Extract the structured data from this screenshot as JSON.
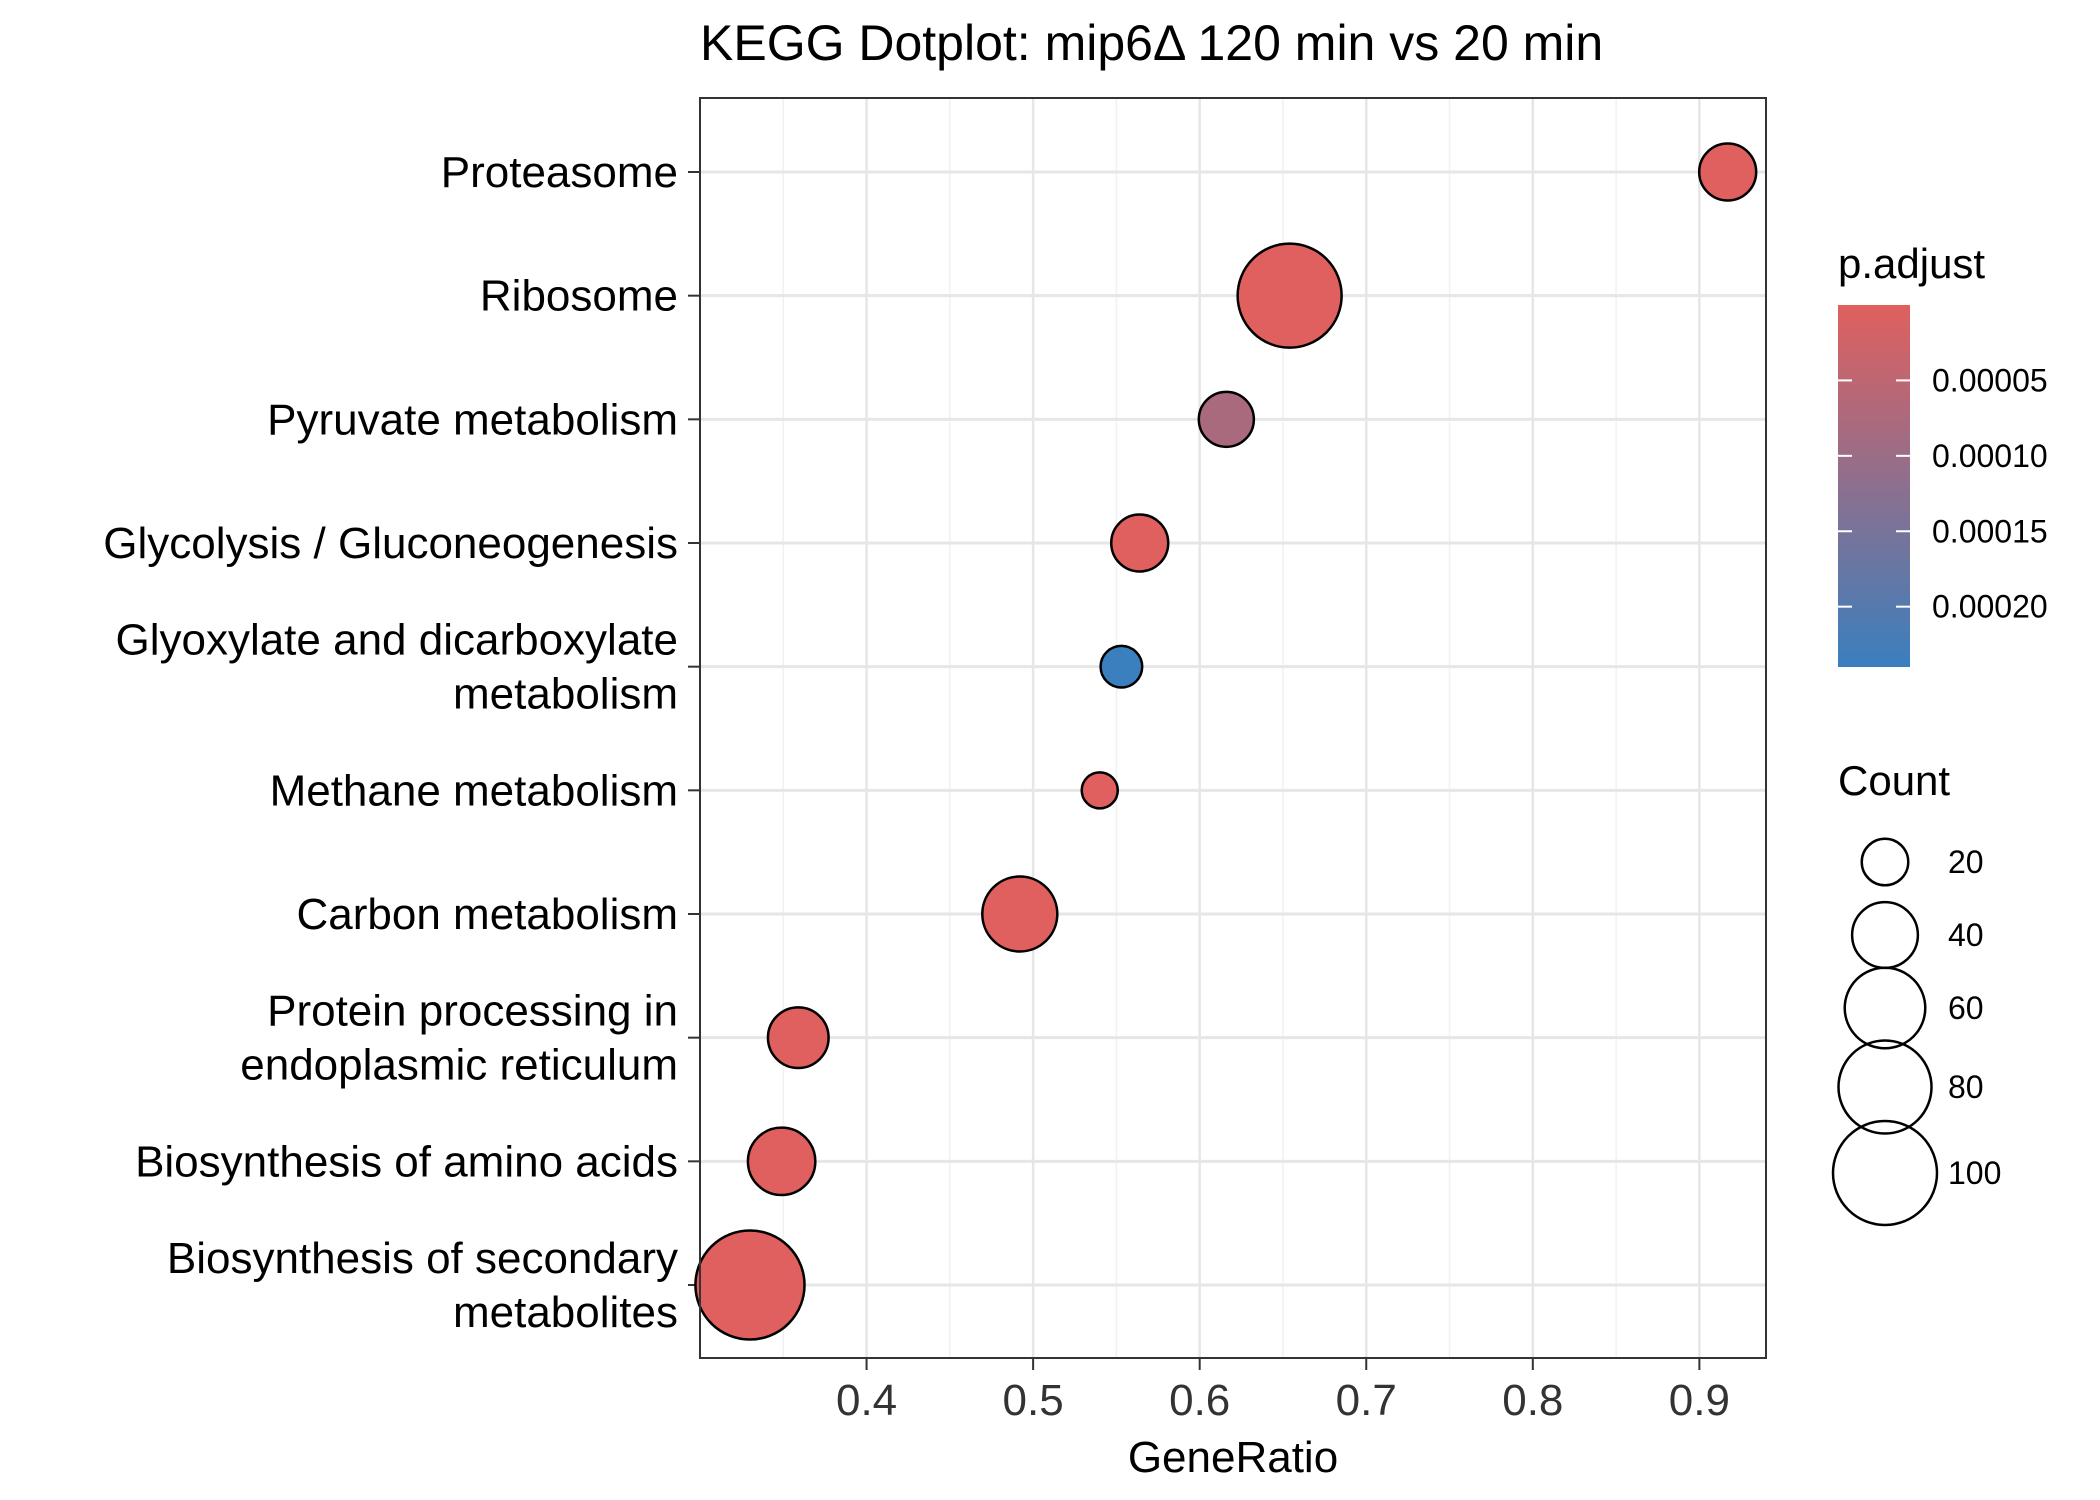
{
  "chart_data": {
    "type": "scatter",
    "title": "KEGG Dotplot: mip6Δ 120 min vs 20 min",
    "xlabel": "GeneRatio",
    "ylabel": "",
    "xlim": [
      0.3,
      0.94
    ],
    "x_ticks": [
      "0.4",
      "0.5",
      "0.6",
      "0.7",
      "0.8",
      "0.9"
    ],
    "x_tick_values": [
      0.4,
      0.5,
      0.6,
      0.7,
      0.8,
      0.9
    ],
    "grid": true,
    "categories": [
      [
        "Proteasome"
      ],
      [
        "Ribosome"
      ],
      [
        "Pyruvate metabolism"
      ],
      [
        "Glycolysis / Gluconeogenesis"
      ],
      [
        "Glyoxylate and dicarboxylate",
        "metabolism"
      ],
      [
        "Methane metabolism"
      ],
      [
        "Carbon metabolism"
      ],
      [
        "Protein processing in",
        "endoplasmic reticulum"
      ],
      [
        "Biosynthesis of amino acids"
      ],
      [
        "Biosynthesis of secondary",
        "metabolites"
      ]
    ],
    "points": [
      {
        "gene_ratio": 0.917,
        "count": 30,
        "p_adjust": 1e-06
      },
      {
        "gene_ratio": 0.654,
        "count": 100,
        "p_adjust": 1e-06
      },
      {
        "gene_ratio": 0.616,
        "count": 28,
        "p_adjust": 8e-05
      },
      {
        "gene_ratio": 0.564,
        "count": 30,
        "p_adjust": 1e-06
      },
      {
        "gene_ratio": 0.553,
        "count": 16,
        "p_adjust": 0.00024
      },
      {
        "gene_ratio": 0.54,
        "count": 12,
        "p_adjust": 1e-06
      },
      {
        "gene_ratio": 0.492,
        "count": 52,
        "p_adjust": 1e-06
      },
      {
        "gene_ratio": 0.359,
        "count": 34,
        "p_adjust": 1e-06
      },
      {
        "gene_ratio": 0.349,
        "count": 42,
        "p_adjust": 1e-06
      },
      {
        "gene_ratio": 0.33,
        "count": 110,
        "p_adjust": 1e-06
      }
    ],
    "color_legend": {
      "title": "p.adjust",
      "range": [
        0.0,
        0.00024
      ],
      "ticks": [
        "0.00005",
        "0.00010",
        "0.00015",
        "0.00020"
      ],
      "tick_values": [
        5e-05,
        0.0001,
        0.00015,
        0.0002
      ],
      "low_color": "#e0605e",
      "high_color": "#3a7fbe",
      "placement": "right"
    },
    "size_legend": {
      "title": "Count",
      "ticks": [
        "20",
        "40",
        "60",
        "80",
        "100"
      ],
      "tick_values": [
        20,
        40,
        60,
        80,
        100
      ],
      "placement": "right"
    }
  }
}
